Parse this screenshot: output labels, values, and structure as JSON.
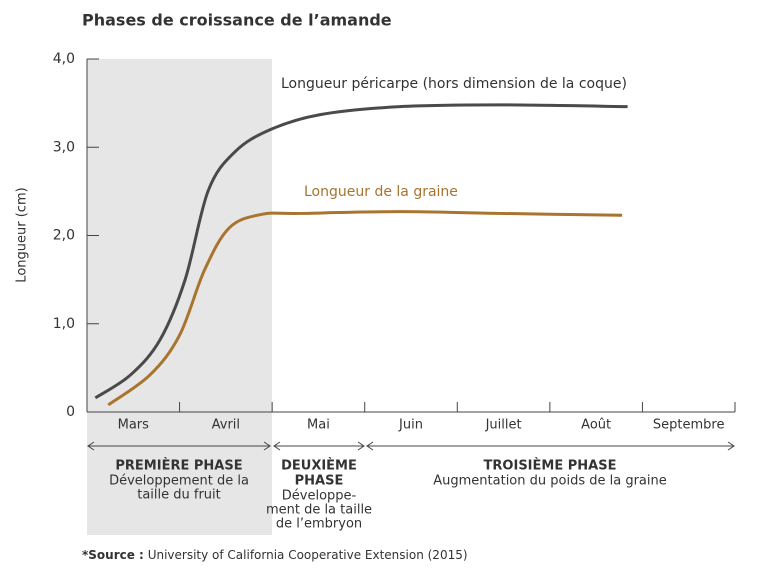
{
  "chart_data": {
    "type": "line",
    "title": "Phases de croissance de l’amande",
    "y_label": "Longueur (cm)",
    "categories": [
      "Mars",
      "Avril",
      "Mai",
      "Juin",
      "Juillet",
      "Août",
      "Septembre"
    ],
    "xlim": [
      0,
      7
    ],
    "ylim": [
      0,
      4
    ],
    "yticks": [
      0,
      {
        "value": 1,
        "label": "1,0"
      },
      {
        "value": 2,
        "label": "2,0"
      },
      {
        "value": 3,
        "label": "3,0"
      },
      {
        "value": 4,
        "label": "4,0"
      }
    ],
    "series": [
      {
        "name": "Longueur péricarpe (hors dimension de la coque)",
        "color": "#4a4a4a",
        "x": [
          0.09,
          0.47,
          0.79,
          1.06,
          1.31,
          1.6,
          1.98,
          2.52,
          3.38,
          4.46,
          5.84
        ],
        "values": [
          0.16,
          0.42,
          0.82,
          1.5,
          2.51,
          2.95,
          3.2,
          3.37,
          3.46,
          3.48,
          3.46
        ]
      },
      {
        "name": "Longueur de la graine",
        "color": "#a8742e",
        "x": [
          0.23,
          0.68,
          1.0,
          1.27,
          1.54,
          1.89,
          2.3,
          3.38,
          4.46,
          5.78
        ],
        "values": [
          0.08,
          0.42,
          0.87,
          1.61,
          2.09,
          2.24,
          2.25,
          2.27,
          2.25,
          2.23
        ]
      }
    ],
    "phases": [
      {
        "title": [
          "PREMIÈRE PHASE"
        ],
        "description": [
          "Développement de la",
          "taille du fruit"
        ]
      },
      {
        "title": [
          "DEUXIÈME",
          "PHASE"
        ],
        "description": [
          "Développe-",
          "ment de la taille",
          "de l’embryon"
        ]
      },
      {
        "title": [
          "TROISIÈME PHASE"
        ],
        "description": [
          "Augmentation du poids de la graine"
        ]
      }
    ],
    "source": {
      "label": "*Source :",
      "text": "University of California Cooperative Extension (2015)"
    }
  }
}
